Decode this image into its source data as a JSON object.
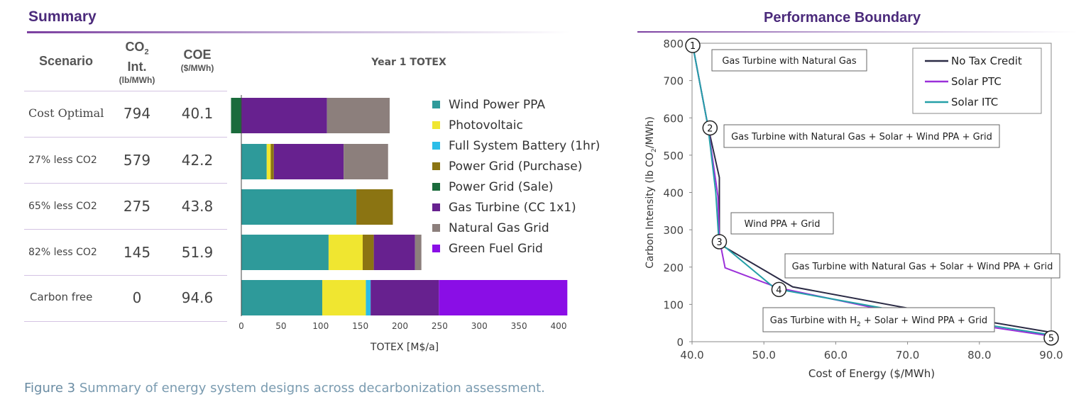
{
  "summary": {
    "title": "Summary",
    "headers": {
      "scenario": "Scenario",
      "co2_main": "CO",
      "co2_sub": "2",
      "co2_line2": "Int.",
      "co2_units": "(lb/MWh)",
      "coe": "COE",
      "coe_units": "($/MWh)"
    },
    "rows": [
      {
        "scenario": "Cost Optimal",
        "co2": "794",
        "coe": "40.1"
      },
      {
        "scenario": "27% less CO2",
        "co2": "579",
        "coe": "42.2"
      },
      {
        "scenario": "65% less CO2",
        "co2": "275",
        "coe": "43.8"
      },
      {
        "scenario": "82% less CO2",
        "co2": "145",
        "coe": "51.9"
      },
      {
        "scenario": "Carbon free",
        "co2": "0",
        "coe": "94.6"
      }
    ]
  },
  "boundary": {
    "title": "Performance Boundary"
  },
  "caption": {
    "label": "Figure 3",
    "text": " Summary of energy system designs across decarbonization assessment."
  },
  "chart_data": [
    {
      "type": "bar",
      "orientation": "horizontal",
      "stacked": true,
      "title": "Year 1 TOTEX",
      "xlabel": "TOTEX [M$/a]",
      "xlim": [
        -13,
        415
      ],
      "xticks": [
        0,
        50,
        100,
        150,
        200,
        250,
        300,
        350,
        400
      ],
      "categories": [
        "Cost Optimal",
        "27% less CO2",
        "65% less CO2",
        "82% less CO2",
        "Carbon free"
      ],
      "legend_position": "right",
      "series": [
        {
          "name": "Wind Power PPA",
          "color": "#2e9a9a",
          "values": [
            0,
            32,
            145,
            110,
            102
          ]
        },
        {
          "name": "Photovoltaic",
          "color": "#f0e630",
          "values": [
            0,
            5,
            0,
            43,
            55
          ]
        },
        {
          "name": "Full System Battery (1hr)",
          "color": "#2bbde8",
          "values": [
            0,
            0,
            0,
            0,
            6
          ]
        },
        {
          "name": "Power Grid (Purchase)",
          "color": "#8b7412",
          "values": [
            0,
            4,
            46,
            14,
            0
          ]
        },
        {
          "name": "Power Grid (Sale)",
          "color": "#1a6b3c",
          "values": [
            -13,
            0,
            0,
            0,
            0
          ]
        },
        {
          "name": "Gas Turbine (CC 1x1)",
          "color": "#67218f",
          "values": [
            108,
            88,
            0,
            52,
            86
          ]
        },
        {
          "name": "Natural Gas Grid",
          "color": "#8c7f7c",
          "values": [
            79,
            56,
            0,
            8,
            0
          ]
        },
        {
          "name": "Green Fuel Grid",
          "color": "#8a0ee6",
          "values": [
            0,
            0,
            0,
            0,
            162
          ]
        }
      ]
    },
    {
      "type": "line",
      "xlabel": "Cost of Energy ($/MWh)",
      "ylabel_parts": [
        "Carbon Intensity (lb CO",
        "2",
        "/MWh)"
      ],
      "xlim": [
        40,
        90
      ],
      "ylim": [
        0,
        800
      ],
      "xticks": [
        "40.0",
        "50.0",
        "60.0",
        "70.0",
        "80.0",
        "90.0"
      ],
      "yticks": [
        0,
        100,
        200,
        300,
        400,
        500,
        600,
        700,
        800
      ],
      "legend_position": "top-right",
      "series": [
        {
          "name": "No Tax Credit",
          "color": "#2b2b45",
          "x": [
            40.1,
            42.2,
            43.8,
            43.8,
            43.8,
            54.0,
            70.0,
            90.0
          ],
          "y": [
            794,
            579,
            440,
            275,
            262,
            147,
            90,
            25
          ]
        },
        {
          "name": "Solar PTC",
          "color": "#9b30d9",
          "x": [
            40.1,
            42.2,
            43.6,
            43.8,
            44.6,
            51.9,
            70.0,
            90.0
          ],
          "y": [
            794,
            579,
            390,
            275,
            198,
            145,
            72,
            15
          ]
        },
        {
          "name": "Solar ITC",
          "color": "#25a0a8",
          "x": [
            40.1,
            42.2,
            43.3,
            43.7,
            43.9,
            51.6,
            70.0,
            90.0
          ],
          "y": [
            794,
            579,
            400,
            280,
            265,
            142,
            78,
            18
          ]
        }
      ],
      "markers": [
        {
          "label": "1",
          "x": 40.1,
          "y": 794
        },
        {
          "label": "2",
          "x": 42.5,
          "y": 573
        },
        {
          "label": "3",
          "x": 43.8,
          "y": 268
        },
        {
          "label": "4",
          "x": 52.1,
          "y": 140
        },
        {
          "label": "5",
          "x": 90.0,
          "y": 10
        }
      ],
      "annotations": [
        {
          "text": "Gas Turbine with Natural Gas"
        },
        {
          "text": "Gas Turbine with Natural Gas + Solar + Wind PPA + Grid"
        },
        {
          "text": "Wind PPA + Grid"
        },
        {
          "text": "Gas Turbine with Natural Gas + Solar + Wind PPA + Grid"
        },
        {
          "text_parts": [
            "Gas Turbine with H",
            "2",
            " + Solar + Wind PPA + Grid"
          ]
        }
      ]
    }
  ]
}
